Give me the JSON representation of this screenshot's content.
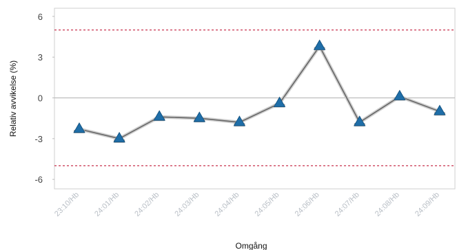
{
  "chart_data": {
    "type": "line",
    "xlabel": "Omgång",
    "ylabel": "Relativ avvikelse (%)",
    "categories": [
      "23:10/Hb",
      "24:01/Hb",
      "24:02/Hb",
      "24:03/Hb",
      "24:04/Hb",
      "24:05/Hb",
      "24:06/Hb",
      "24:07/Hb",
      "24:08/Hb",
      "24:09/Hb"
    ],
    "values": [
      -2.3,
      -3.0,
      -1.4,
      -1.5,
      -1.8,
      -0.4,
      3.8,
      -1.8,
      0.1,
      -1.0
    ],
    "ylim": [
      -6.7,
      6.6
    ],
    "yticks": [
      -6,
      -3,
      0,
      3,
      6
    ],
    "ytick_labels": [
      "-6",
      "-3",
      "0",
      "3",
      "6"
    ],
    "reference_lines": [
      5,
      -5
    ],
    "zero_line": 0,
    "colors": {
      "marker": "#1f6ea8",
      "line": "#666666",
      "limit_line": "#c8334f",
      "zero_line": "#bdbdbd",
      "frame": "#cfcfcf"
    }
  }
}
